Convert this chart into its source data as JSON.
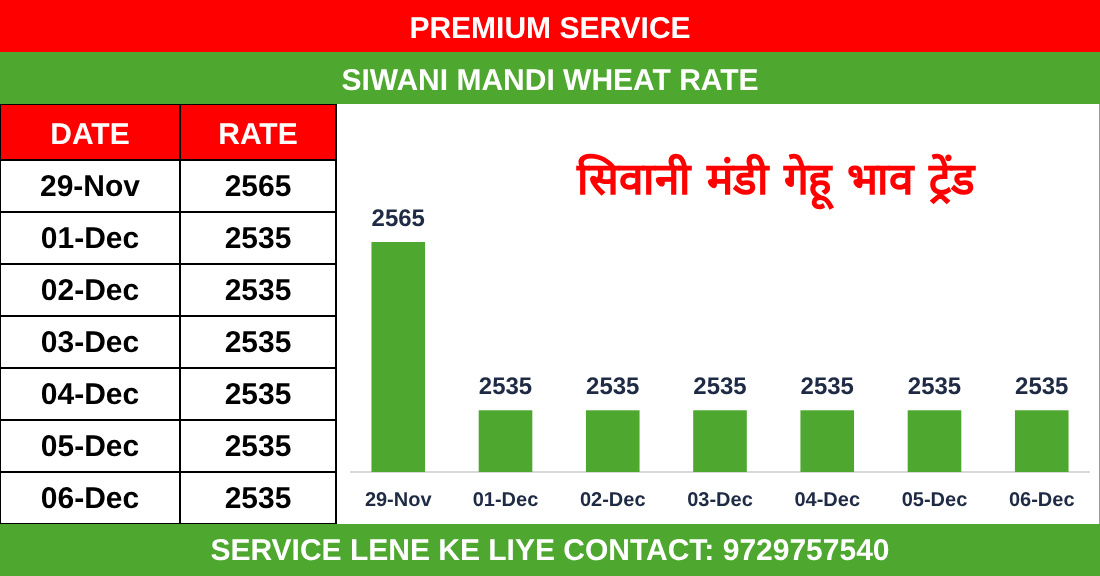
{
  "chart_data": [
    {
      "type": "other",
      "annotations": [
        "DATE",
        "RATE",
        "29-Nov",
        "2565",
        "01-Dec",
        "2535",
        "02-Dec",
        "2535",
        "03-Dec",
        "2535",
        "04-Dec",
        "2535",
        "05-Dec",
        "2535",
        "06-Dec",
        "2535"
      ]
    },
    {
      "type": "bar",
      "title": "SIWANI MANDI WHEAT RATE",
      "subtitle": "सिवानी मंडी गेहू भाव  ट्रेंड",
      "categories": [
        "29-Nov",
        "01-Dec",
        "02-Dec",
        "03-Dec",
        "04-Dec",
        "05-Dec",
        "06-Dec"
      ],
      "values": [
        2565,
        2535,
        2535,
        2535,
        2535,
        2535,
        2535
      ],
      "color": "#4ea72e",
      "data_labels": true,
      "ylim": [
        2524,
        2565
      ],
      "tick_labels": "x",
      "annotations": [
        "PREMIUM SERVICE",
        "SERVICE LENE KE LIYE CONTACT: 9729757540"
      ]
    }
  ]
}
